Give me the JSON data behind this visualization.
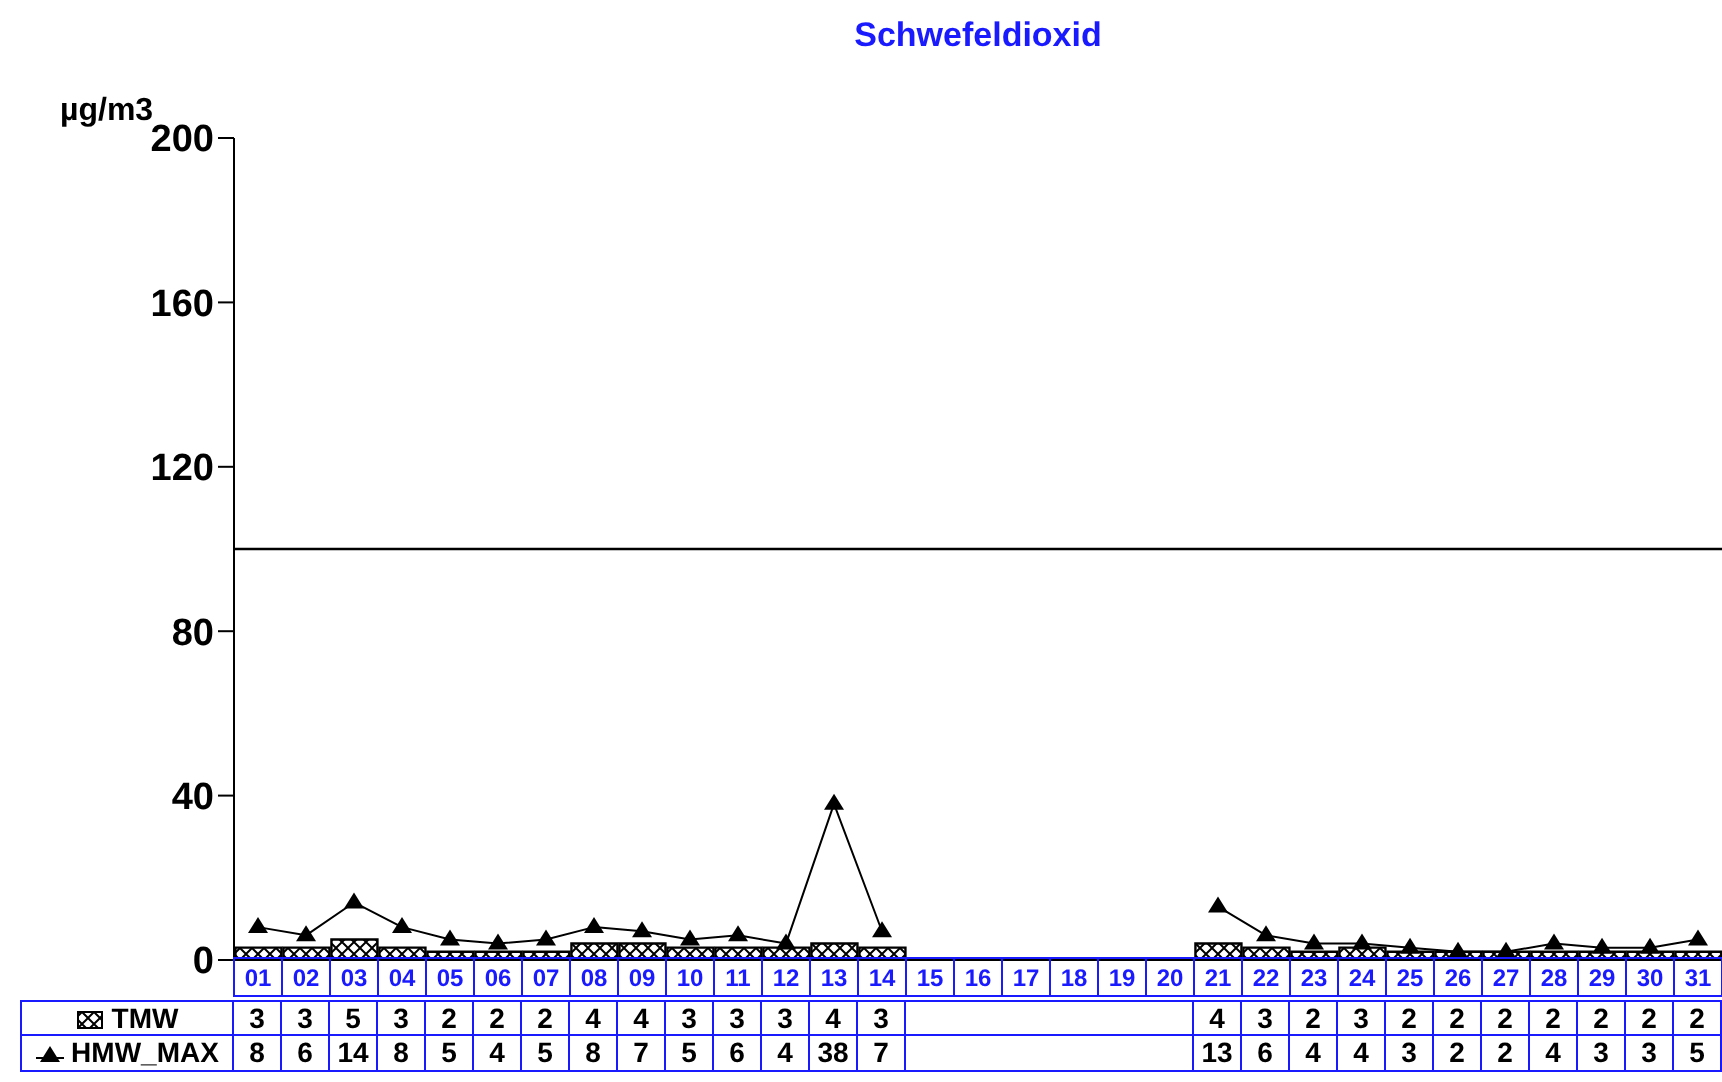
{
  "chart_data": {
    "type": "bar",
    "title": "Schwefeldioxid",
    "ylabel": "µg/m3",
    "categories": [
      "01",
      "02",
      "03",
      "04",
      "05",
      "06",
      "07",
      "08",
      "09",
      "10",
      "11",
      "12",
      "13",
      "14",
      "15",
      "16",
      "17",
      "18",
      "19",
      "20",
      "21",
      "22",
      "23",
      "24",
      "25",
      "26",
      "27",
      "28",
      "29",
      "30",
      "31"
    ],
    "series": [
      {
        "name": "TMW",
        "color": "#000000",
        "values": [
          3,
          3,
          5,
          3,
          2,
          2,
          2,
          4,
          4,
          3,
          3,
          3,
          4,
          3,
          null,
          null,
          null,
          null,
          null,
          null,
          4,
          3,
          2,
          3,
          2,
          2,
          2,
          2,
          2,
          2,
          2
        ]
      },
      {
        "name": "HMW_MAX",
        "type": "line",
        "color": "#000000",
        "marker": "triangle",
        "values": [
          8,
          6,
          14,
          8,
          5,
          4,
          5,
          8,
          7,
          5,
          6,
          4,
          38,
          7,
          null,
          null,
          null,
          null,
          null,
          null,
          13,
          6,
          4,
          4,
          3,
          2,
          2,
          4,
          3,
          3,
          5
        ]
      }
    ],
    "ylim": [
      0,
      200
    ],
    "yticks": [
      0,
      40,
      80,
      120,
      160,
      200
    ],
    "ref_lines": [
      {
        "axis": "y",
        "value": 100,
        "color": "#000000"
      }
    ],
    "data_labels": true,
    "legend": "bottom left",
    "grid": false
  }
}
